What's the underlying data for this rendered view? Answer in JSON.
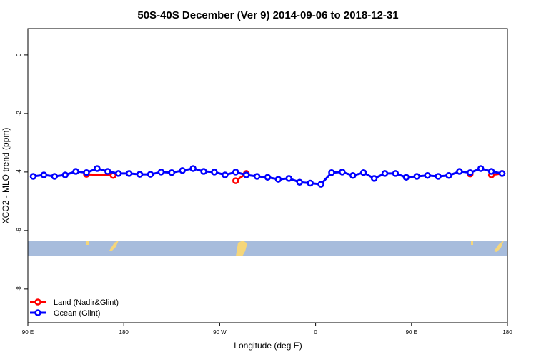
{
  "chart_data": {
    "type": "line",
    "title": "50S-40S December (Ver 9)   2014-09-06 to 2018-12-31",
    "x_label": "Longitude (deg E)",
    "y_label": "XCO2 - MLO trend (ppm)",
    "xlim": [
      90,
      540
    ],
    "xticks": [
      {
        "value": 90,
        "label": "90 E"
      },
      180,
      {
        "value": 270,
        "label": "90 W"
      },
      {
        "value": 360,
        "label": "0"
      },
      {
        "value": 450,
        "label": "90 E"
      },
      {
        "value": 540,
        "label": "180"
      }
    ],
    "ylim": [
      -9.15,
      0.9
    ],
    "yticks": [
      0,
      -2,
      -4,
      -6,
      -8
    ],
    "legend": "bottom-left",
    "series": [
      {
        "name": "Land (Nadir&Glint)",
        "color": "#ff0000",
        "x": [
          145,
          170,
          180,
          285,
          295,
          305,
          505,
          515,
          525,
          535
        ],
        "values": [
          -4.08,
          -4.12,
          null,
          -4.3,
          -4.05,
          null,
          -4.07,
          null,
          -4.1,
          -4.05
        ]
      },
      {
        "name": "Ocean (Glint)",
        "color": "#0000ff",
        "x": [
          95,
          105,
          115,
          125,
          135,
          145,
          155,
          165,
          175,
          185,
          195,
          205,
          215,
          225,
          235,
          245,
          255,
          265,
          275,
          285,
          295,
          305,
          315,
          325,
          335,
          345,
          355,
          365,
          375,
          385,
          395,
          405,
          415,
          425,
          435,
          445,
          455,
          465,
          475,
          485,
          495,
          505,
          515,
          525,
          535
        ],
        "values": [
          -4.15,
          -4.1,
          -4.15,
          -4.1,
          -3.98,
          -4.02,
          -3.88,
          -3.98,
          -4.05,
          -4.05,
          -4.08,
          -4.08,
          -4.0,
          -4.02,
          -3.95,
          -3.88,
          -3.98,
          -4.0,
          -4.1,
          -4.0,
          -4.1,
          -4.15,
          -4.18,
          -4.25,
          -4.22,
          -4.35,
          -4.38,
          -4.42,
          -4.02,
          -4.0,
          -4.12,
          -4.02,
          -4.22,
          -4.05,
          -4.05,
          -4.18,
          -4.15,
          -4.12,
          -4.15,
          -4.12,
          -3.98,
          -4.02,
          -3.88,
          -3.98,
          -4.05
        ]
      }
    ]
  }
}
